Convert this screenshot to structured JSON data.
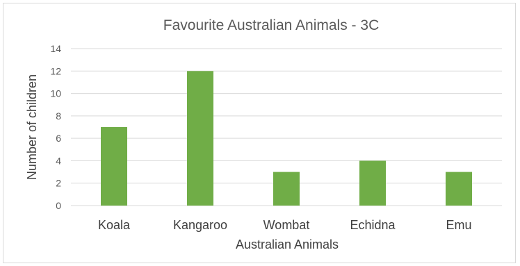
{
  "chart_data": {
    "type": "bar",
    "title": "Favourite Australian Animals - 3C",
    "xlabel": "Australian Animals",
    "ylabel": "Number of children",
    "categories": [
      "Koala",
      "Kangaroo",
      "Wombat",
      "Echidna",
      "Emu"
    ],
    "values": [
      7,
      12,
      3,
      4,
      3
    ],
    "ylim": [
      0,
      14
    ],
    "yticks": [
      "0",
      "2",
      "4",
      "6",
      "8",
      "10",
      "12",
      "14"
    ],
    "grid": true,
    "bar_color": "#70ad47",
    "gridline_color": "#d9d9d9"
  }
}
